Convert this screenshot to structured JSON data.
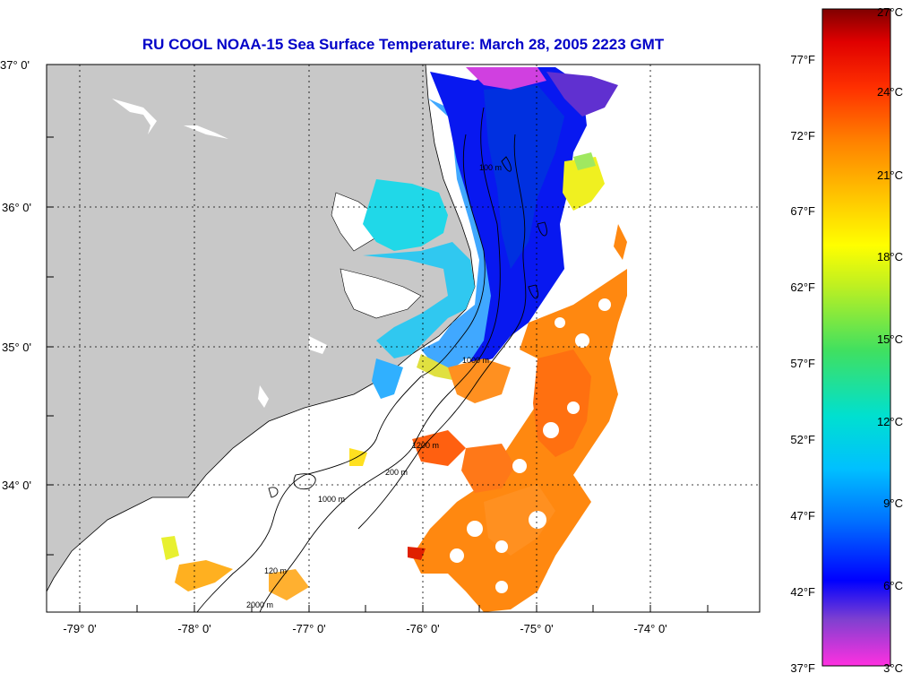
{
  "title": "RU COOL  NOAA-15  Sea Surface Temperature:  March 28, 2005 2223 GMT",
  "map": {
    "lat_labels": [
      "37° 0'",
      "36° 0'",
      "35° 0'",
      "34° 0'"
    ],
    "lon_labels": [
      "-79° 0'",
      "-78° 0'",
      "-77° 0'",
      "-76° 0'",
      "-75° 0'",
      "-74° 0'"
    ],
    "contour_labels": [
      "100 m",
      "1000 m",
      "1200 m",
      "200 m",
      "1000 m",
      "120 m",
      "2000 m"
    ],
    "land_color": "#c8c8c8",
    "cloud_color": "#ffffff"
  },
  "colorbar": {
    "celsius_labels": [
      "27°C",
      "24°C",
      "21°C",
      "18°C",
      "15°C",
      "12°C",
      "9°C",
      "6°C",
      "3°C"
    ],
    "fahrenheit_labels": [
      "77°F",
      "72°F",
      "67°F",
      "62°F",
      "57°F",
      "52°F",
      "47°F",
      "42°F",
      "37°F"
    ],
    "range_c": [
      3,
      27
    ],
    "colors": [
      "#ff30e0",
      "#8040d0",
      "#0000ff",
      "#0070ff",
      "#00c0ff",
      "#00e0d0",
      "#40e060",
      "#c0f020",
      "#ffff00",
      "#ffc000",
      "#ff8000",
      "#ff3000",
      "#e00000",
      "#800000"
    ]
  }
}
